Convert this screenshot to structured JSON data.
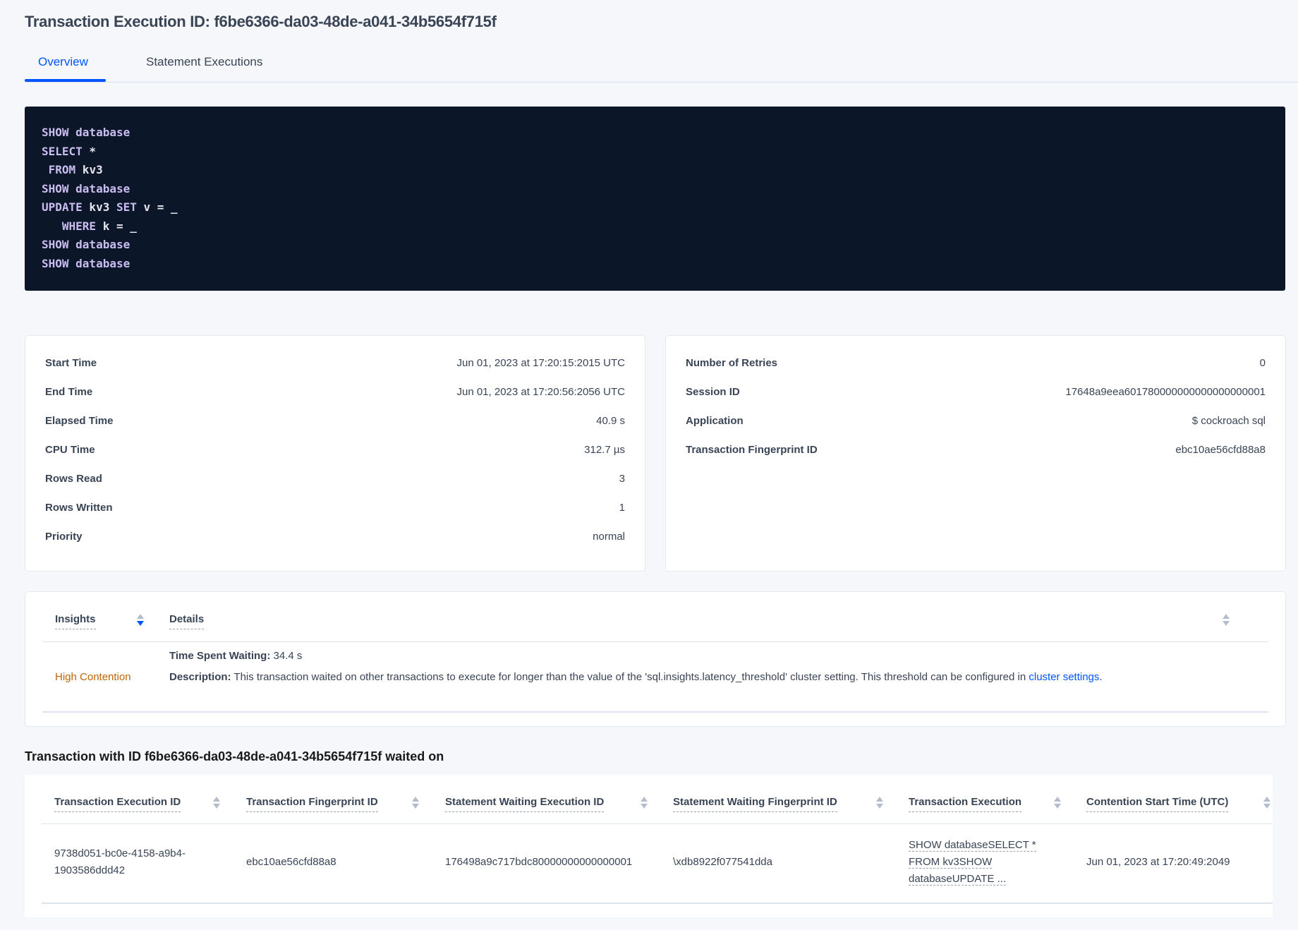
{
  "header": {
    "title": "Transaction Execution ID: f6be6366-da03-48de-a041-34b5654f715f"
  },
  "tabs": [
    {
      "label": "Overview",
      "active": true
    },
    {
      "label": "Statement Executions",
      "active": false
    }
  ],
  "code": {
    "lines": [
      [
        {
          "t": "SHOW database",
          "kw": true
        }
      ],
      [
        {
          "t": "SELECT",
          "kw": true
        },
        {
          "t": " *",
          "kw": false
        }
      ],
      [
        {
          "t": " FROM",
          "kw": true
        },
        {
          "t": " kv3",
          "kw": false
        }
      ],
      [
        {
          "t": "SHOW database",
          "kw": true
        }
      ],
      [
        {
          "t": "UPDATE",
          "kw": true
        },
        {
          "t": " kv3 ",
          "kw": false
        },
        {
          "t": "SET",
          "kw": true
        },
        {
          "t": " v = _",
          "kw": false
        }
      ],
      [
        {
          "t": "   WHERE",
          "kw": true
        },
        {
          "t": " k = _",
          "kw": false
        }
      ],
      [
        {
          "t": "SHOW database",
          "kw": true
        }
      ],
      [
        {
          "t": "SHOW database",
          "kw": true
        }
      ]
    ]
  },
  "details_left": [
    {
      "label": "Start Time",
      "value": "Jun 01, 2023 at 17:20:15:2015 UTC"
    },
    {
      "label": "End Time",
      "value": "Jun 01, 2023 at 17:20:56:2056 UTC"
    },
    {
      "label": "Elapsed Time",
      "value": "40.9 s"
    },
    {
      "label": "CPU Time",
      "value": "312.7 µs"
    },
    {
      "label": "Rows Read",
      "value": "3"
    },
    {
      "label": "Rows Written",
      "value": "1"
    },
    {
      "label": "Priority",
      "value": "normal"
    }
  ],
  "details_right": [
    {
      "label": "Number of Retries",
      "value": "0"
    },
    {
      "label": "Session ID",
      "value": "17648a9eea601780000000000000000001"
    },
    {
      "label": "Application",
      "value": "$ cockroach sql"
    },
    {
      "label": "Transaction Fingerprint ID",
      "value": "ebc10ae56cfd88a8",
      "link": true
    }
  ],
  "insights": {
    "columns": [
      "Insights",
      "Details"
    ],
    "rows": [
      {
        "insight": "High Contention",
        "insight_color": "#c0640a",
        "time_label": "Time Spent Waiting:",
        "time_value": " 34.4 s",
        "desc_label": "Description:",
        "desc_text": " This transaction waited on other transactions to execute for longer than the value of the 'sql.insights.latency_threshold' cluster setting. This threshold can be configured in ",
        "desc_link": "cluster settings",
        "desc_end": "."
      }
    ]
  },
  "waited_on": {
    "title": "Transaction with ID f6be6366-da03-48de-a041-34b5654f715f waited on",
    "columns": [
      "Transaction Execution ID",
      "Transaction Fingerprint ID",
      "Statement Waiting Execution ID",
      "Statement Waiting Fingerprint ID",
      "Transaction Execution",
      "Contention Start Time (UTC)"
    ],
    "rows": [
      {
        "txn_exec_id": "9738d051-bc0e-4158-a9b4-1903586ddd42",
        "txn_fp_id": "ebc10ae56cfd88a8",
        "stmt_exec_id": "176498a9c717bdc80000000000000001",
        "stmt_fp_id": "\\xdb8922f077541dda",
        "txn_exec": [
          "SHOW databaseSELECT *",
          "FROM kv3SHOW",
          "databaseUPDATE ..."
        ],
        "start_time": "Jun 01, 2023 at 17:20:49:2049"
      }
    ]
  },
  "colors": {
    "accent": "#0055ff",
    "code_bg": "#0c1629",
    "warning": "#c0640a"
  }
}
